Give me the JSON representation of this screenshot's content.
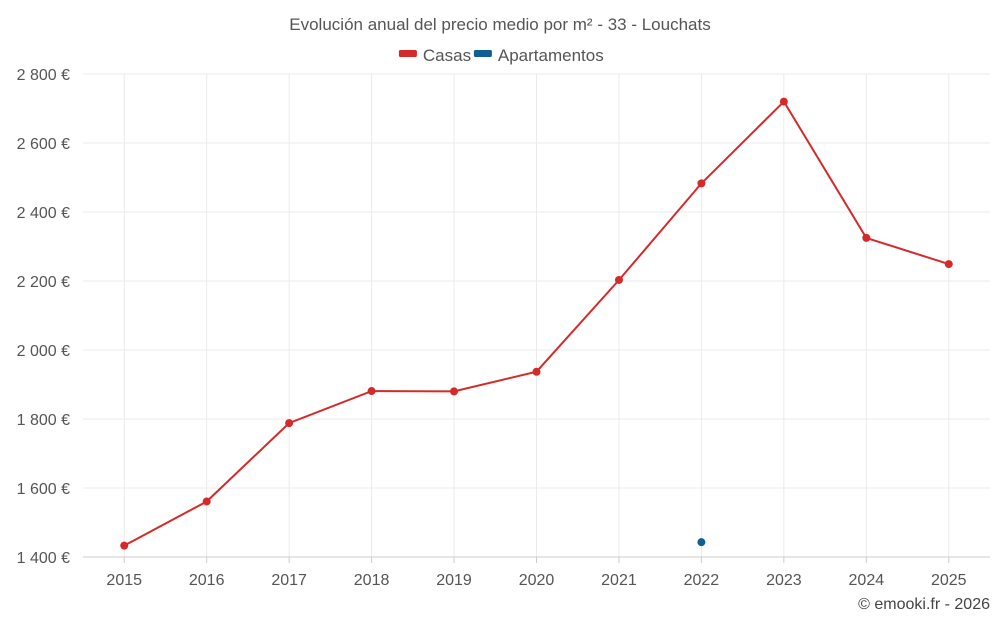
{
  "chart_data": {
    "type": "line",
    "title": "Evolución anual del precio medio por m² - 33 - Louchats",
    "categories": [
      "2015",
      "2016",
      "2017",
      "2018",
      "2019",
      "2020",
      "2021",
      "2022",
      "2023",
      "2024",
      "2025"
    ],
    "series": [
      {
        "name": "Casas",
        "color": "#d42a2a",
        "values": [
          1433,
          1561,
          1788,
          1881,
          1880,
          1937,
          2203,
          2483,
          2720,
          2325,
          2249
        ]
      },
      {
        "name": "Apartamentos",
        "color": "#0f5f96",
        "values": [
          null,
          null,
          null,
          null,
          null,
          null,
          null,
          1443,
          null,
          null,
          null
        ]
      }
    ],
    "ylim": [
      1400,
      2800
    ],
    "yticks": [
      1400,
      1600,
      1800,
      2000,
      2200,
      2400,
      2600,
      2800
    ],
    "ytick_labels": [
      "1 400 €",
      "1 600 €",
      "1 800 €",
      "2 000 €",
      "2 200 €",
      "2 400 €",
      "2 600 €",
      "2 800 €"
    ],
    "xlabel": "",
    "ylabel": "",
    "grid": true,
    "legend_position": "top-center"
  },
  "credit": "© emooki.fr - 2026"
}
